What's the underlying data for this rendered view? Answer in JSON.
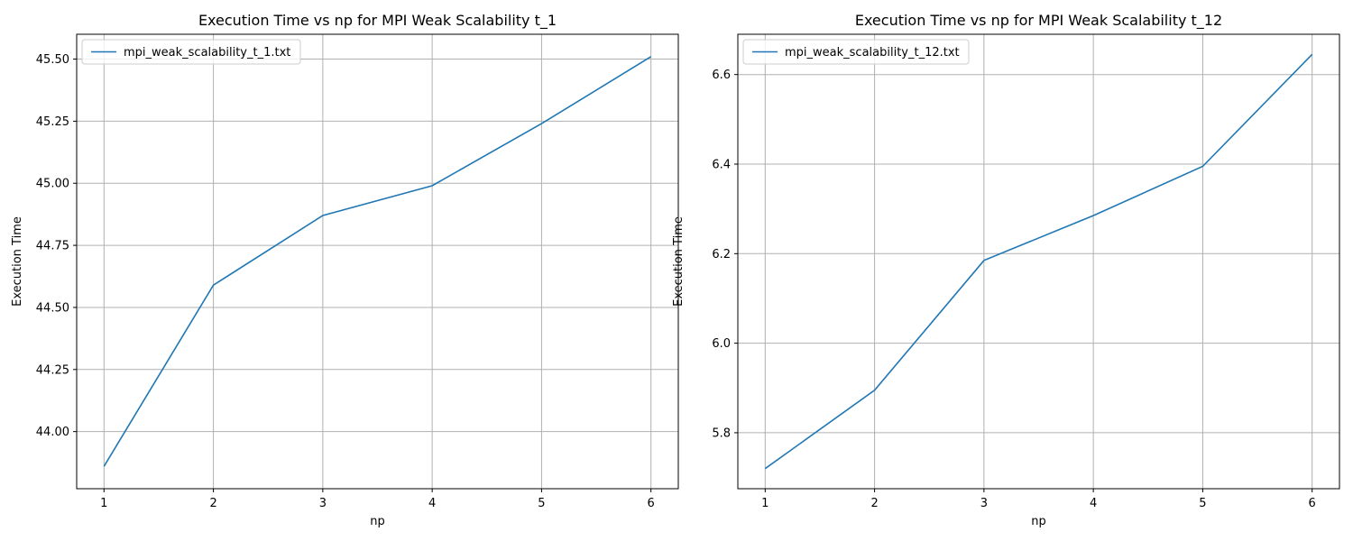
{
  "chart_data": [
    {
      "type": "line",
      "title": "Execution Time vs np for MPI Weak Scalability t_1",
      "xlabel": "np",
      "ylabel": "Execution Time",
      "x": [
        1,
        2,
        3,
        4,
        5,
        6
      ],
      "series": [
        {
          "name": "mpi_weak_scalability_t_1.txt",
          "values": [
            43.86,
            44.59,
            44.87,
            44.99,
            45.24,
            45.51
          ]
        }
      ],
      "xlim": [
        0.75,
        6.25
      ],
      "ylim": [
        43.77,
        45.6
      ],
      "xticks": [
        1,
        2,
        3,
        4,
        5,
        6
      ],
      "xtick_labels": [
        "1",
        "2",
        "3",
        "4",
        "5",
        "6"
      ],
      "yticks": [
        44.0,
        44.25,
        44.5,
        44.75,
        45.0,
        45.25,
        45.5
      ],
      "ytick_labels": [
        "44.00",
        "44.25",
        "44.50",
        "44.75",
        "45.00",
        "45.25",
        "45.50"
      ],
      "grid": true,
      "legend_position": "top-left",
      "line_color": "#1f77b4"
    },
    {
      "type": "line",
      "title": "Execution Time vs np for MPI Weak Scalability t_12",
      "xlabel": "np",
      "ylabel": "Execution Time",
      "x": [
        1,
        2,
        3,
        4,
        5,
        6
      ],
      "series": [
        {
          "name": "mpi_weak_scalability_t_12.txt",
          "values": [
            5.72,
            5.895,
            6.185,
            6.285,
            6.395,
            6.645
          ]
        }
      ],
      "xlim": [
        0.75,
        6.25
      ],
      "ylim": [
        5.675,
        6.69
      ],
      "xticks": [
        1,
        2,
        3,
        4,
        5,
        6
      ],
      "xtick_labels": [
        "1",
        "2",
        "3",
        "4",
        "5",
        "6"
      ],
      "yticks": [
        5.8,
        6.0,
        6.2,
        6.4,
        6.6
      ],
      "ytick_labels": [
        "5.8",
        "6.0",
        "6.2",
        "6.4",
        "6.6"
      ],
      "grid": true,
      "legend_position": "top-left",
      "line_color": "#1f77b4"
    }
  ]
}
